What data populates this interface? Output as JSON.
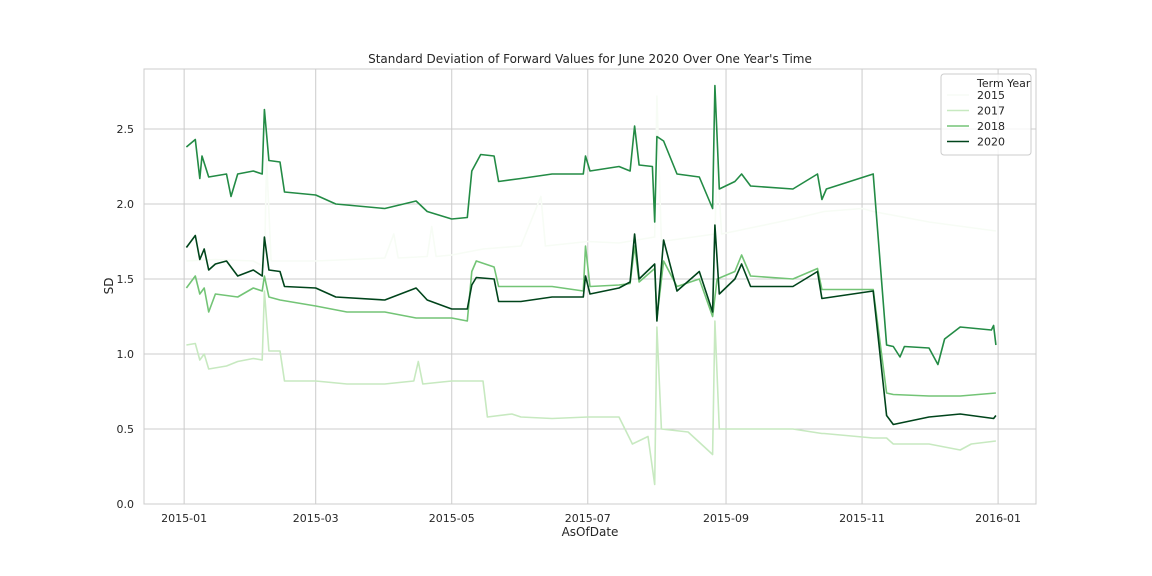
{
  "chart_data": {
    "type": "line",
    "title": "Standard Deviation of Forward Values for June 2020 Over One Year's Time",
    "xlabel": "AsOfDate",
    "ylabel": "SD",
    "xlim": [
      "2014-12-14",
      "2016-01-18"
    ],
    "ylim": [
      0.0,
      2.9
    ],
    "xticks": [
      "2015-01",
      "2015-03",
      "2015-05",
      "2015-07",
      "2015-09",
      "2015-11",
      "2016-01"
    ],
    "xtick_dates": [
      "2015-01-01",
      "2015-03-01",
      "2015-05-01",
      "2015-07-01",
      "2015-09-01",
      "2015-11-01",
      "2016-01-01"
    ],
    "yticks": [
      "0.0",
      "0.5",
      "1.0",
      "1.5",
      "2.0",
      "2.5"
    ],
    "ytick_values": [
      0.0,
      0.5,
      1.0,
      1.5,
      2.0,
      2.5
    ],
    "grid": true,
    "legend": {
      "title": "Term Year",
      "placement": "top-right"
    },
    "series": [
      {
        "name": "2015",
        "color": "#f7fcf5",
        "points": [
          [
            "2015-01-02",
            1.62
          ],
          [
            "2015-01-15",
            1.63
          ],
          [
            "2015-02-01",
            1.62
          ],
          [
            "2015-02-06",
            1.58
          ],
          [
            "2015-02-07",
            2.3
          ],
          [
            "2015-02-09",
            1.62
          ],
          [
            "2015-03-01",
            1.62
          ],
          [
            "2015-04-01",
            1.64
          ],
          [
            "2015-04-05",
            1.8
          ],
          [
            "2015-04-07",
            1.64
          ],
          [
            "2015-04-20",
            1.65
          ],
          [
            "2015-04-22",
            1.85
          ],
          [
            "2015-04-24",
            1.65
          ],
          [
            "2015-05-01",
            1.66
          ],
          [
            "2015-05-15",
            1.7
          ],
          [
            "2015-06-01",
            1.72
          ],
          [
            "2015-06-10",
            2.05
          ],
          [
            "2015-06-12",
            1.72
          ],
          [
            "2015-07-01",
            1.75
          ],
          [
            "2015-07-15",
            1.74
          ],
          [
            "2015-07-31",
            1.78
          ],
          [
            "2015-08-01",
            2.72
          ],
          [
            "2015-08-03",
            1.75
          ],
          [
            "2015-08-27",
            1.8
          ],
          [
            "2015-08-28",
            2.3
          ],
          [
            "2015-08-30",
            1.8
          ],
          [
            "2015-09-15",
            1.85
          ],
          [
            "2015-10-01",
            1.9
          ],
          [
            "2015-10-15",
            1.95
          ],
          [
            "2015-11-01",
            1.97
          ],
          [
            "2015-11-06",
            1.95
          ],
          [
            "2015-12-01",
            1.88
          ],
          [
            "2015-12-31",
            1.82
          ]
        ]
      },
      {
        "name": "2017",
        "color": "#c7e9c0",
        "points": [
          [
            "2015-01-02",
            1.06
          ],
          [
            "2015-01-06",
            1.07
          ],
          [
            "2015-01-08",
            0.96
          ],
          [
            "2015-01-10",
            1.0
          ],
          [
            "2015-01-12",
            0.9
          ],
          [
            "2015-01-20",
            0.92
          ],
          [
            "2015-01-25",
            0.95
          ],
          [
            "2015-02-01",
            0.97
          ],
          [
            "2015-02-05",
            0.96
          ],
          [
            "2015-02-06",
            1.42
          ],
          [
            "2015-02-08",
            1.02
          ],
          [
            "2015-02-13",
            1.02
          ],
          [
            "2015-02-15",
            0.82
          ],
          [
            "2015-03-01",
            0.82
          ],
          [
            "2015-03-15",
            0.8
          ],
          [
            "2015-04-01",
            0.8
          ],
          [
            "2015-04-14",
            0.82
          ],
          [
            "2015-04-16",
            0.95
          ],
          [
            "2015-04-18",
            0.8
          ],
          [
            "2015-05-01",
            0.82
          ],
          [
            "2015-05-15",
            0.82
          ],
          [
            "2015-05-17",
            0.58
          ],
          [
            "2015-05-28",
            0.6
          ],
          [
            "2015-06-01",
            0.58
          ],
          [
            "2015-06-15",
            0.57
          ],
          [
            "2015-07-01",
            0.58
          ],
          [
            "2015-07-15",
            0.58
          ],
          [
            "2015-07-21",
            0.4
          ],
          [
            "2015-07-28",
            0.45
          ],
          [
            "2015-07-31",
            0.13
          ],
          [
            "2015-08-01",
            1.18
          ],
          [
            "2015-08-03",
            0.5
          ],
          [
            "2015-08-15",
            0.48
          ],
          [
            "2015-08-26",
            0.33
          ],
          [
            "2015-08-27",
            1.22
          ],
          [
            "2015-08-29",
            0.5
          ],
          [
            "2015-09-15",
            0.5
          ],
          [
            "2015-10-01",
            0.5
          ],
          [
            "2015-10-14",
            0.47
          ],
          [
            "2015-10-15",
            0.47
          ],
          [
            "2015-11-06",
            0.44
          ],
          [
            "2015-11-12",
            0.44
          ],
          [
            "2015-11-15",
            0.4
          ],
          [
            "2015-12-01",
            0.4
          ],
          [
            "2015-12-15",
            0.36
          ],
          [
            "2015-12-20",
            0.4
          ],
          [
            "2015-12-31",
            0.42
          ]
        ]
      },
      {
        "name": "2018",
        "color": "#73c476",
        "points": [
          [
            "2015-01-02",
            1.44
          ],
          [
            "2015-01-06",
            1.52
          ],
          [
            "2015-01-08",
            1.4
          ],
          [
            "2015-01-10",
            1.44
          ],
          [
            "2015-01-12",
            1.28
          ],
          [
            "2015-01-15",
            1.4
          ],
          [
            "2015-01-25",
            1.38
          ],
          [
            "2015-02-01",
            1.44
          ],
          [
            "2015-02-05",
            1.42
          ],
          [
            "2015-02-06",
            1.52
          ],
          [
            "2015-02-08",
            1.38
          ],
          [
            "2015-02-13",
            1.36
          ],
          [
            "2015-03-01",
            1.32
          ],
          [
            "2015-03-15",
            1.28
          ],
          [
            "2015-04-01",
            1.28
          ],
          [
            "2015-04-15",
            1.24
          ],
          [
            "2015-05-01",
            1.24
          ],
          [
            "2015-05-08",
            1.22
          ],
          [
            "2015-05-10",
            1.55
          ],
          [
            "2015-05-12",
            1.62
          ],
          [
            "2015-05-20",
            1.58
          ],
          [
            "2015-05-22",
            1.45
          ],
          [
            "2015-06-01",
            1.45
          ],
          [
            "2015-06-15",
            1.45
          ],
          [
            "2015-06-29",
            1.42
          ],
          [
            "2015-06-30",
            1.72
          ],
          [
            "2015-07-02",
            1.45
          ],
          [
            "2015-07-15",
            1.46
          ],
          [
            "2015-07-20",
            1.47
          ],
          [
            "2015-07-22",
            1.72
          ],
          [
            "2015-07-24",
            1.48
          ],
          [
            "2015-07-31",
            1.57
          ],
          [
            "2015-08-01",
            1.24
          ],
          [
            "2015-08-04",
            1.62
          ],
          [
            "2015-08-10",
            1.45
          ],
          [
            "2015-08-20",
            1.5
          ],
          [
            "2015-08-26",
            1.25
          ],
          [
            "2015-08-28",
            1.5
          ],
          [
            "2015-09-05",
            1.55
          ],
          [
            "2015-09-08",
            1.66
          ],
          [
            "2015-09-12",
            1.52
          ],
          [
            "2015-10-01",
            1.5
          ],
          [
            "2015-10-12",
            1.57
          ],
          [
            "2015-10-14",
            1.43
          ],
          [
            "2015-11-06",
            1.43
          ],
          [
            "2015-11-12",
            0.74
          ],
          [
            "2015-11-15",
            0.73
          ],
          [
            "2015-12-01",
            0.72
          ],
          [
            "2015-12-15",
            0.72
          ],
          [
            "2015-12-31",
            0.74
          ]
        ]
      },
      {
        "name": "2020",
        "color": "#00441b",
        "points": [
          [
            "2015-01-02",
            1.71
          ],
          [
            "2015-01-06",
            1.79
          ],
          [
            "2015-01-08",
            1.63
          ],
          [
            "2015-01-10",
            1.7
          ],
          [
            "2015-01-12",
            1.56
          ],
          [
            "2015-01-15",
            1.6
          ],
          [
            "2015-01-20",
            1.62
          ],
          [
            "2015-01-25",
            1.52
          ],
          [
            "2015-02-01",
            1.56
          ],
          [
            "2015-02-05",
            1.52
          ],
          [
            "2015-02-06",
            1.78
          ],
          [
            "2015-02-08",
            1.56
          ],
          [
            "2015-02-13",
            1.55
          ],
          [
            "2015-02-15",
            1.45
          ],
          [
            "2015-03-01",
            1.44
          ],
          [
            "2015-03-10",
            1.38
          ],
          [
            "2015-04-01",
            1.36
          ],
          [
            "2015-04-15",
            1.44
          ],
          [
            "2015-04-20",
            1.36
          ],
          [
            "2015-05-01",
            1.3
          ],
          [
            "2015-05-08",
            1.3
          ],
          [
            "2015-05-10",
            1.46
          ],
          [
            "2015-05-12",
            1.51
          ],
          [
            "2015-05-20",
            1.5
          ],
          [
            "2015-05-22",
            1.35
          ],
          [
            "2015-06-01",
            1.35
          ],
          [
            "2015-06-15",
            1.38
          ],
          [
            "2015-06-29",
            1.38
          ],
          [
            "2015-06-30",
            1.52
          ],
          [
            "2015-07-02",
            1.4
          ],
          [
            "2015-07-15",
            1.44
          ],
          [
            "2015-07-20",
            1.48
          ],
          [
            "2015-07-22",
            1.8
          ],
          [
            "2015-07-24",
            1.5
          ],
          [
            "2015-07-31",
            1.6
          ],
          [
            "2015-08-01",
            1.22
          ],
          [
            "2015-08-04",
            1.76
          ],
          [
            "2015-08-10",
            1.42
          ],
          [
            "2015-08-20",
            1.55
          ],
          [
            "2015-08-26",
            1.28
          ],
          [
            "2015-08-27",
            1.86
          ],
          [
            "2015-08-29",
            1.4
          ],
          [
            "2015-09-05",
            1.5
          ],
          [
            "2015-09-08",
            1.6
          ],
          [
            "2015-09-12",
            1.45
          ],
          [
            "2015-10-01",
            1.45
          ],
          [
            "2015-10-12",
            1.55
          ],
          [
            "2015-10-14",
            1.37
          ],
          [
            "2015-11-06",
            1.42
          ],
          [
            "2015-11-12",
            0.59
          ],
          [
            "2015-11-15",
            0.53
          ],
          [
            "2015-12-01",
            0.58
          ],
          [
            "2015-12-15",
            0.6
          ],
          [
            "2015-12-30",
            0.57
          ],
          [
            "2015-12-31",
            0.59
          ]
        ]
      },
      {
        "name": "",
        "color": "#238b45",
        "points": [
          [
            "2015-01-02",
            2.38
          ],
          [
            "2015-01-06",
            2.43
          ],
          [
            "2015-01-08",
            2.17
          ],
          [
            "2015-01-09",
            2.32
          ],
          [
            "2015-01-12",
            2.18
          ],
          [
            "2015-01-20",
            2.2
          ],
          [
            "2015-01-22",
            2.05
          ],
          [
            "2015-01-25",
            2.2
          ],
          [
            "2015-02-01",
            2.22
          ],
          [
            "2015-02-05",
            2.2
          ],
          [
            "2015-02-06",
            2.63
          ],
          [
            "2015-02-08",
            2.29
          ],
          [
            "2015-02-13",
            2.28
          ],
          [
            "2015-02-15",
            2.08
          ],
          [
            "2015-03-01",
            2.06
          ],
          [
            "2015-03-10",
            2.0
          ],
          [
            "2015-04-01",
            1.97
          ],
          [
            "2015-04-15",
            2.02
          ],
          [
            "2015-04-20",
            1.95
          ],
          [
            "2015-05-01",
            1.9
          ],
          [
            "2015-05-08",
            1.91
          ],
          [
            "2015-05-10",
            2.22
          ],
          [
            "2015-05-14",
            2.33
          ],
          [
            "2015-05-20",
            2.32
          ],
          [
            "2015-05-22",
            2.15
          ],
          [
            "2015-06-01",
            2.17
          ],
          [
            "2015-06-15",
            2.2
          ],
          [
            "2015-06-29",
            2.2
          ],
          [
            "2015-06-30",
            2.32
          ],
          [
            "2015-07-02",
            2.22
          ],
          [
            "2015-07-15",
            2.25
          ],
          [
            "2015-07-20",
            2.22
          ],
          [
            "2015-07-22",
            2.52
          ],
          [
            "2015-07-24",
            2.26
          ],
          [
            "2015-07-30",
            2.25
          ],
          [
            "2015-07-31",
            1.88
          ],
          [
            "2015-08-01",
            2.45
          ],
          [
            "2015-08-04",
            2.42
          ],
          [
            "2015-08-10",
            2.2
          ],
          [
            "2015-08-20",
            2.18
          ],
          [
            "2015-08-26",
            1.97
          ],
          [
            "2015-08-27",
            2.79
          ],
          [
            "2015-08-29",
            2.1
          ],
          [
            "2015-09-05",
            2.15
          ],
          [
            "2015-09-08",
            2.2
          ],
          [
            "2015-09-12",
            2.12
          ],
          [
            "2015-10-01",
            2.1
          ],
          [
            "2015-10-12",
            2.2
          ],
          [
            "2015-10-14",
            2.03
          ],
          [
            "2015-10-16",
            2.1
          ],
          [
            "2015-11-06",
            2.2
          ],
          [
            "2015-11-12",
            1.06
          ],
          [
            "2015-11-15",
            1.05
          ],
          [
            "2015-11-18",
            0.98
          ],
          [
            "2015-11-20",
            1.05
          ],
          [
            "2015-12-01",
            1.04
          ],
          [
            "2015-12-05",
            0.93
          ],
          [
            "2015-12-08",
            1.1
          ],
          [
            "2015-12-15",
            1.18
          ],
          [
            "2015-12-29",
            1.16
          ],
          [
            "2015-12-30",
            1.19
          ],
          [
            "2015-12-31",
            1.06
          ]
        ]
      }
    ],
    "legend_items": [
      {
        "label": "2015",
        "color": "#f7fcf5"
      },
      {
        "label": "2017",
        "color": "#c7e9c0"
      },
      {
        "label": "2018",
        "color": "#73c476"
      },
      {
        "label": "2020",
        "color": "#00441b"
      }
    ]
  }
}
